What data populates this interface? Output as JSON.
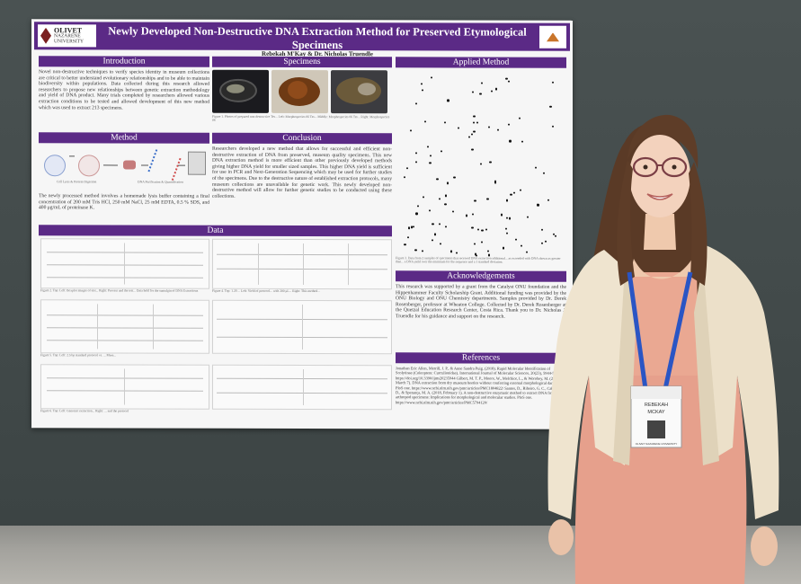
{
  "poster": {
    "logo_left": {
      "line1": "OLIVET",
      "line2": "NAZARENE",
      "line3": "UNIVERSITY"
    },
    "title": "Newly Developed Non-Destructive DNA Extraction Method for Preserved Etymological Specimens",
    "authors": "Rebekah M'Kay & Dr. Nicholas Truendle",
    "sections": {
      "introduction": "Introduction",
      "specimens": "Specimens",
      "applied_method": "Applied Method",
      "method": "Method",
      "conclusion": "Conclusion",
      "data": "Data",
      "acknowledgements": "Acknowledgements",
      "references": "References"
    },
    "introduction_text": "Novel non-destructive techniques to verify species identity in museum collections are critical to better understand evolutionary relationships and to be able to maintain biodiversity within populations. Data collected during this research allowed researchers to propose new relationships between genetic extraction methodology and yield of DNA product. Many trials completed by researchers allowed various extraction conditions to be tested and allowed development of this new method which was used to extract 213 specimens.",
    "specimens_caption": "Figure 1. Photos of prepared non-destructive Tes... Left: Morphospecies 06 Tes... Middle: Morphospecies 06 Tes... Right: Morphospecies 08",
    "method_text": "The newly processed method involves a homemade lysis buffer containing a final concentration of 200 mM Tris HCl, 250 mM NaCl, 25 mM EDTA, 0.5 % SDS, and 400 μg/mL of proteinase K.",
    "method_labels": [
      "Cell Lysis & Protein Digestion",
      "DNA Purification & Quantification"
    ],
    "conclusion_text": "Researchers developed a new method that allows for successful and efficient non-destructive extraction of DNA from preserved, museum quality specimens. This new DNA extraction method is more efficient than other previously developed methods giving higher DNA yield for smaller sized samples. This higher DNA yield is sufficient for use in PCR and Next-Generation Sequencing which may be used for further studies of the specimens. Due to the destructive nature of established extraction protocols, many museum collections are unavailable for genetic work. This newly developed non-destructive method will allow for further genetic studies to be conducted using these collections.",
    "acknowledgements_text": "This research was supported by a grant from the Catalyst ONU foundation and the Hippenhammer Faculty Scholarship Grant. Additional funding was provided by the ONU Biology and ONU Chemistry departments. Samples provided by Dr. Derek Rosenberger, professor at Wheaton College. Collected by Dr. Derek Rosenberger at the Quetzal Education Research Center, Costa Rica. Thank you to Dr. Nicholas J. Truendle for his guidance and support on the research.",
    "references_text": "Jonathan Eric Allen, Merrill, J. P., & Anne Sandra Puig. (2018). Rapid Molecular Identification of Scolytinae (Coleoptera: Curculionidae). International Journal of Molecular Sciences, 20(23), 5944-5944. https://doi.org/10.3390/ijms20235944 Gilbert, M. T. P., Moore, W., Melchior, L., & Worobey, M. (2007, March 7). DNA extraction from dry museum beetles without conferring external morphological damage. PloS one. https://www.ncbi.nlm.nih.gov/pmc/articles/PMC1804822/ Santos, D., Ribeiro, G. C., Cabral, A. D., & Sperança, M. A. (2018, February 1). A non-destructive enzymatic method to extract DNA from arthropod specimens: Implications for morphological and molecular studies. PloS one. https://www.ncbi.nlm.nih.gov/pmc/articles/PMC5794120/",
    "applied_caption": "Figure 3. Data from 2 samples of specimens that received DNA extraction additional... as exceeded with DNA shown as greater than... a DNA yield over the minimum for the sequence and a 1 standard deviation.",
    "data_captions": [
      "Figure 2. Top: Left: Boxplot images of test... Right: Process and the test... Data hold for the sumulgin of DNA Extractions",
      "Figure 4. Top: 1.20 ... Left: Yield of protocol... with 200 μL... Right: This method...",
      "Figure 5. Top: Left: 2.5 bp standard protocol vs. ... More...",
      "Figure 6. Top: Left: Genomic extraction... Right: ... and the protocol"
    ]
  },
  "badge": {
    "line1": "REBEKAH",
    "line2": "MCKAY",
    "line3": "OLIVET NAZARENE UNIVERSITY"
  }
}
